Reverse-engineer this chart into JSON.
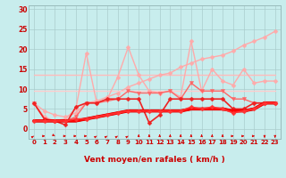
{
  "bg_color": "#c8eded",
  "grid_color": "#aacccc",
  "xlabel": "Vent moyen/en rafales ( km/h )",
  "x_ticks": [
    0,
    1,
    2,
    3,
    4,
    5,
    6,
    7,
    8,
    9,
    10,
    11,
    12,
    13,
    14,
    15,
    16,
    17,
    18,
    19,
    20,
    21,
    22,
    23
  ],
  "ylim": [
    -2.5,
    31
  ],
  "yticks": [
    0,
    5,
    10,
    15,
    20,
    25,
    30
  ],
  "lines": [
    {
      "y": [
        13.5,
        13.5,
        13.5,
        13.5,
        13.5,
        13.5,
        13.5,
        13.5,
        13.5,
        13.5,
        13.5,
        13.5,
        13.5,
        13.5,
        13.5,
        13.5,
        13.5,
        13.5,
        13.5,
        13.5,
        13.5,
        13.5,
        13.5,
        13.5
      ],
      "color": "#ffbbbb",
      "lw": 1.0,
      "marker": null
    },
    {
      "y": [
        6.5,
        4.5,
        3.5,
        3.0,
        4.0,
        6.5,
        7.0,
        8.0,
        9.0,
        10.5,
        11.5,
        12.5,
        13.5,
        14.0,
        15.5,
        16.5,
        17.5,
        18.0,
        18.5,
        19.5,
        21.0,
        22.0,
        23.0,
        24.5
      ],
      "color": "#ffaaaa",
      "lw": 1.0,
      "marker": "D",
      "ms": 2.5
    },
    {
      "y": [
        9.5,
        9.5,
        9.5,
        9.5,
        9.5,
        9.5,
        9.5,
        9.5,
        9.5,
        9.5,
        9.5,
        9.5,
        9.5,
        9.5,
        9.5,
        9.5,
        9.5,
        9.5,
        9.5,
        9.5,
        9.5,
        9.5,
        9.5,
        9.5
      ],
      "color": "#ffcccc",
      "lw": 1.0,
      "marker": null
    },
    {
      "y": [
        6.5,
        3.0,
        2.0,
        2.5,
        5.0,
        19.0,
        6.5,
        7.5,
        13.0,
        20.5,
        13.5,
        9.5,
        9.0,
        9.5,
        8.0,
        22.0,
        9.5,
        15.0,
        12.0,
        11.0,
        15.0,
        11.5,
        12.0,
        12.0
      ],
      "color": "#ffaaaa",
      "lw": 1.0,
      "marker": "D",
      "ms": 2.5
    },
    {
      "y": [
        6.5,
        2.5,
        2.0,
        2.0,
        3.0,
        6.5,
        6.5,
        7.0,
        7.5,
        9.5,
        9.0,
        9.0,
        9.0,
        9.5,
        7.5,
        11.5,
        9.5,
        9.5,
        9.5,
        7.5,
        7.5,
        6.5,
        6.5,
        6.5
      ],
      "color": "#ff6666",
      "lw": 1.0,
      "marker": "v",
      "ms": 3
    },
    {
      "y": [
        6.5,
        2.5,
        2.0,
        1.0,
        5.5,
        6.5,
        6.5,
        7.5,
        7.5,
        7.5,
        7.5,
        1.5,
        3.5,
        7.5,
        7.5,
        7.5,
        7.5,
        7.5,
        7.5,
        5.0,
        5.0,
        6.5,
        6.5,
        6.5
      ],
      "color": "#ee2222",
      "lw": 1.2,
      "marker": "D",
      "ms": 2.5
    },
    {
      "y": [
        2.0,
        2.0,
        2.0,
        2.0,
        2.0,
        2.5,
        3.0,
        3.5,
        4.0,
        4.5,
        4.5,
        4.5,
        4.5,
        4.5,
        4.5,
        5.0,
        5.0,
        5.0,
        5.0,
        4.5,
        4.5,
        5.0,
        6.5,
        6.5
      ],
      "color": "#cc0000",
      "lw": 2.5,
      "marker": null
    },
    {
      "y": [
        2.0,
        2.0,
        2.0,
        2.0,
        2.0,
        2.5,
        3.0,
        3.5,
        4.0,
        4.5,
        4.5,
        4.5,
        4.5,
        4.5,
        4.5,
        5.0,
        5.0,
        5.0,
        5.0,
        4.5,
        4.5,
        5.0,
        6.5,
        6.5
      ],
      "color": "#ff0000",
      "lw": 2.0,
      "marker": null
    },
    {
      "y": [
        2.0,
        2.0,
        2.0,
        2.0,
        2.5,
        2.5,
        3.0,
        3.5,
        4.0,
        4.5,
        4.5,
        4.5,
        4.5,
        4.5,
        4.5,
        5.5,
        5.0,
        5.5,
        5.0,
        4.0,
        4.5,
        5.0,
        6.5,
        6.5
      ],
      "color": "#ff3333",
      "lw": 1.2,
      "marker": "D",
      "ms": 2.5
    }
  ],
  "wind_symbols": [
    "↗",
    "→",
    "↘",
    "→",
    "→",
    "→",
    "↗",
    "↗",
    "↗",
    "↗",
    "↑",
    "↑",
    "↑",
    "↑",
    "↑",
    "↑",
    "↑",
    "↑",
    "↑",
    "→",
    "→",
    "→",
    "↓",
    "↓"
  ],
  "wind_color": "#dd0000",
  "wind_y": -1.8
}
